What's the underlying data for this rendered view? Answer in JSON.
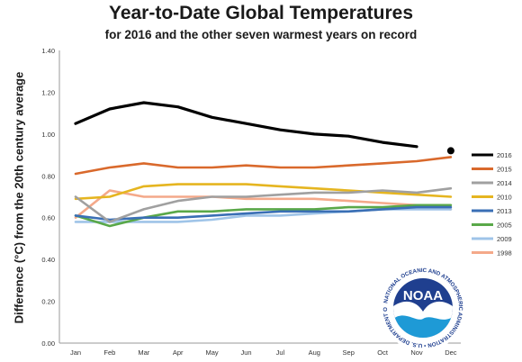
{
  "chart_data": {
    "type": "line",
    "title": "Year-to-Date Global Temperatures",
    "subtitle": "for 2016 and the other seven warmest years on record",
    "xlabel": "",
    "ylabel": "Difference (°C) from the 20th century average",
    "categories": [
      "Jan",
      "Feb",
      "Mar",
      "Apr",
      "May",
      "Jun",
      "Jul",
      "Aug",
      "Sep",
      "Oct",
      "Nov",
      "Dec"
    ],
    "ylim": [
      0,
      1.4
    ],
    "yticks": [
      "0.00",
      "0.20",
      "0.40",
      "0.60",
      "0.80",
      "1.00",
      "1.20",
      "1.40"
    ],
    "grid": false,
    "legend_position": "right",
    "series": [
      {
        "name": "2016",
        "color": "#000000",
        "values": [
          1.05,
          1.12,
          1.15,
          1.13,
          1.08,
          1.05,
          1.02,
          1.0,
          0.99,
          0.96,
          0.94,
          null
        ],
        "marker_point": {
          "category": "Dec",
          "value": 0.92
        }
      },
      {
        "name": "2015",
        "color": "#d9692c",
        "values": [
          0.81,
          0.84,
          0.86,
          0.84,
          0.84,
          0.85,
          0.84,
          0.84,
          0.85,
          0.86,
          0.87,
          0.89
        ]
      },
      {
        "name": "2014",
        "color": "#a0a0a0",
        "values": [
          0.7,
          0.58,
          0.64,
          0.68,
          0.7,
          0.7,
          0.71,
          0.72,
          0.72,
          0.73,
          0.72,
          0.74
        ]
      },
      {
        "name": "2010",
        "color": "#e5b520",
        "values": [
          0.69,
          0.7,
          0.75,
          0.76,
          0.76,
          0.76,
          0.75,
          0.74,
          0.73,
          0.72,
          0.71,
          0.7
        ]
      },
      {
        "name": "2013",
        "color": "#3a6fb5",
        "values": [
          0.61,
          0.59,
          0.6,
          0.6,
          0.61,
          0.62,
          0.63,
          0.63,
          0.63,
          0.64,
          0.65,
          0.65
        ]
      },
      {
        "name": "2005",
        "color": "#5aa849",
        "values": [
          0.61,
          0.56,
          0.6,
          0.63,
          0.63,
          0.64,
          0.64,
          0.64,
          0.65,
          0.65,
          0.66,
          0.66
        ]
      },
      {
        "name": "2009",
        "color": "#9fc4e8",
        "values": [
          0.58,
          0.58,
          0.58,
          0.58,
          0.59,
          0.61,
          0.61,
          0.62,
          0.63,
          0.64,
          0.64,
          0.64
        ]
      },
      {
        "name": "1998",
        "color": "#f4a98a",
        "values": [
          0.6,
          0.73,
          0.7,
          0.7,
          0.7,
          0.69,
          0.69,
          0.69,
          0.68,
          0.67,
          0.66,
          0.64
        ]
      }
    ]
  },
  "logo": {
    "label": "NOAA",
    "ring_text": "NATIONAL OCEANIC AND ATMOSPHERIC ADMINISTRATION • U.S. DEPARTMENT OF COMMERCE •",
    "colors": {
      "dark": "#1f3f8f",
      "light": "#1e9ad6",
      "white": "#ffffff"
    }
  }
}
